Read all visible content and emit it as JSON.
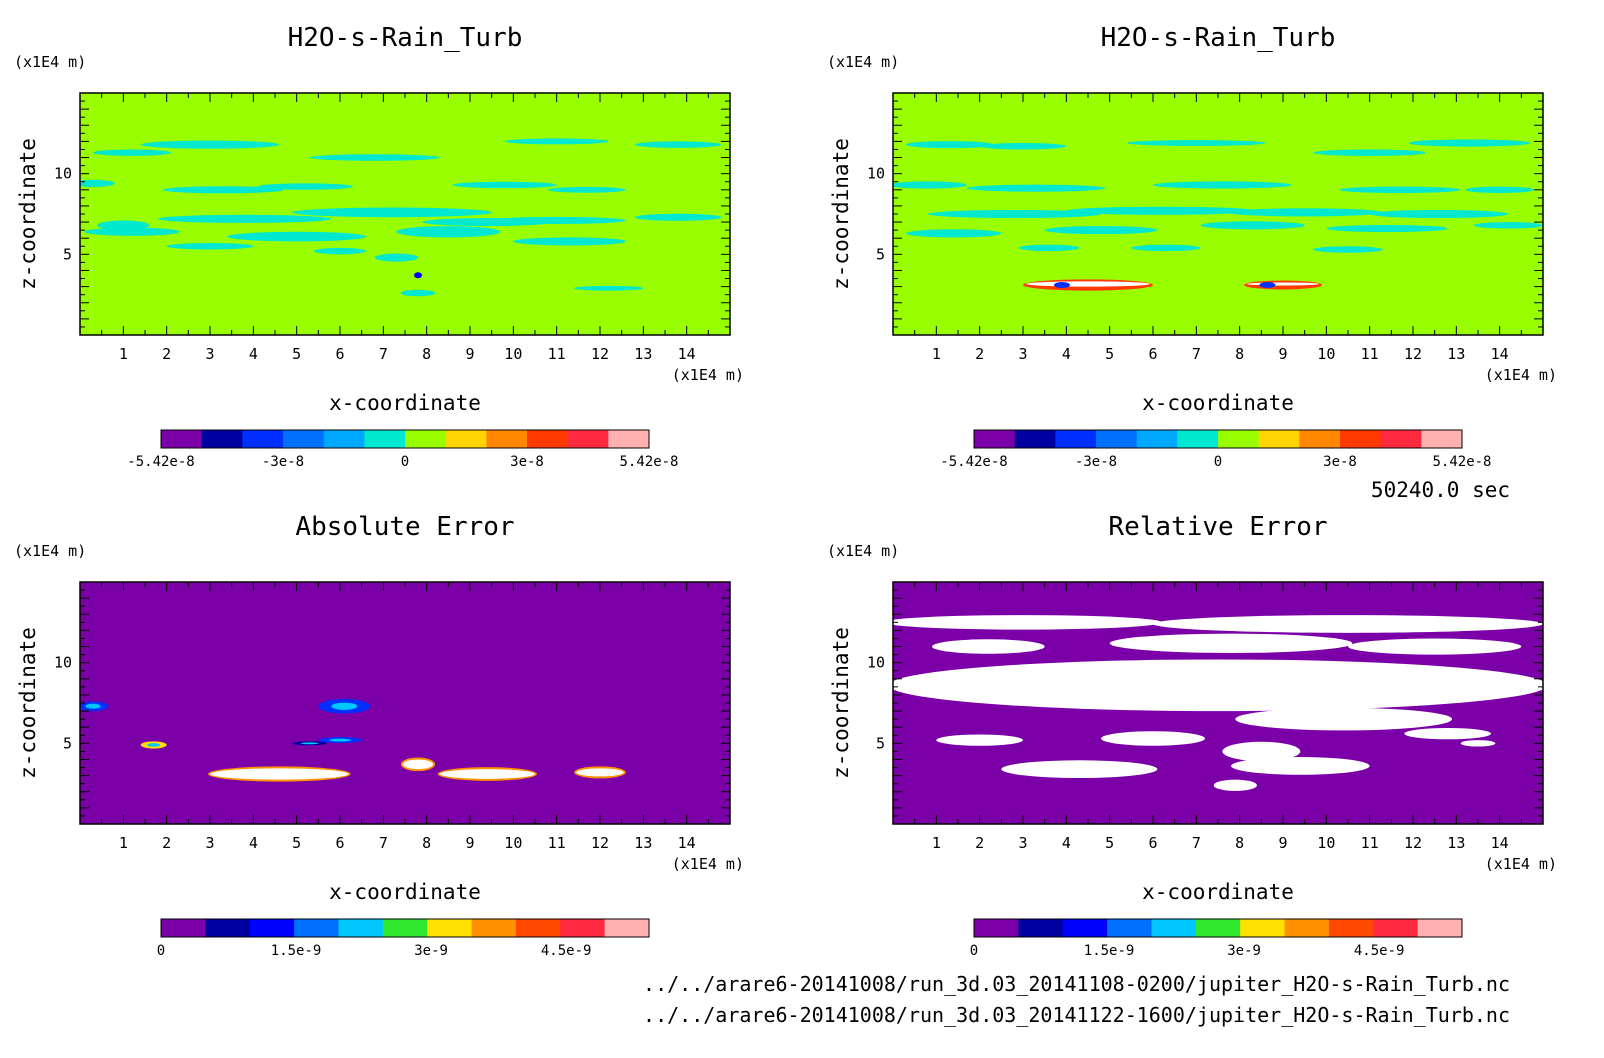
{
  "time_label": "50240.0 sec",
  "file_paths": [
    "../../arare6-20141008/run_3d.03_20141108-0200/jupiter_H2O-s-Rain_Turb.nc",
    "../../arare6-20141008/run_3d.03_20141122-1600/jupiter_H2O-s-Rain_Turb.nc"
  ],
  "colors": {
    "background_value": "#99ff00",
    "zero_fill": "#7b00a8",
    "feature_cyan": "#00e8d0",
    "white_regions": "#ffffff"
  },
  "chart_data": [
    {
      "type": "heatmap",
      "title": "H2O-s-Rain_Turb",
      "xlabel": "x-coordinate",
      "ylabel": "z-coordinate",
      "x_unit": "(x1E4 m)",
      "y_unit": "(x1E4 m)",
      "xlim": [
        0,
        15
      ],
      "ylim": [
        0,
        15
      ],
      "xticks": [
        "1",
        "2",
        "3",
        "4",
        "5",
        "6",
        "7",
        "8",
        "9",
        "10",
        "11",
        "12",
        "13",
        "14"
      ],
      "yticks": [
        "5",
        "10"
      ],
      "colorbar": {
        "colors": [
          "#7b00a8",
          "#0000a0",
          "#0030ff",
          "#0070ff",
          "#00a8ff",
          "#00e8d0",
          "#99ff00",
          "#ffd400",
          "#ff8800",
          "#ff3a00",
          "#ff2a40",
          "#ffb0b0"
        ],
        "labels": [
          "-5.42e-8",
          "-3e-8",
          "0",
          "3e-8",
          "5.42e-8"
        ]
      }
    },
    {
      "type": "heatmap",
      "title": "H2O-s-Rain_Turb",
      "xlabel": "x-coordinate",
      "ylabel": "z-coordinate",
      "x_unit": "(x1E4 m)",
      "y_unit": "(x1E4 m)",
      "xlim": [
        0,
        15
      ],
      "ylim": [
        0,
        15
      ],
      "xticks": [
        "1",
        "2",
        "3",
        "4",
        "5",
        "6",
        "7",
        "8",
        "9",
        "10",
        "11",
        "12",
        "13",
        "14"
      ],
      "yticks": [
        "5",
        "10"
      ],
      "colorbar": {
        "colors": [
          "#7b00a8",
          "#0000a0",
          "#0030ff",
          "#0070ff",
          "#00a8ff",
          "#00e8d0",
          "#99ff00",
          "#ffd400",
          "#ff8800",
          "#ff3a00",
          "#ff2a40",
          "#ffb0b0"
        ],
        "labels": [
          "-5.42e-8",
          "-3e-8",
          "0",
          "3e-8",
          "5.42e-8"
        ]
      }
    },
    {
      "type": "heatmap",
      "title": "Absolute Error",
      "xlabel": "x-coordinate",
      "ylabel": "z-coordinate",
      "x_unit": "(x1E4 m)",
      "y_unit": "(x1E4 m)",
      "xlim": [
        0,
        15
      ],
      "ylim": [
        0,
        15
      ],
      "xticks": [
        "1",
        "2",
        "3",
        "4",
        "5",
        "6",
        "7",
        "8",
        "9",
        "10",
        "11",
        "12",
        "13",
        "14"
      ],
      "yticks": [
        "5",
        "10"
      ],
      "colorbar": {
        "colors": [
          "#7b00a8",
          "#0000a0",
          "#0000ff",
          "#0070ff",
          "#00c8ff",
          "#30e830",
          "#ffe000",
          "#ff9000",
          "#ff4800",
          "#ff2a40",
          "#ffb0b0"
        ],
        "labels": [
          "0",
          "1.5e-9",
          "3e-9",
          "4.5e-9"
        ]
      }
    },
    {
      "type": "heatmap",
      "title": "Relative Error",
      "xlabel": "x-coordinate",
      "ylabel": "z-coordinate",
      "x_unit": "(x1E4 m)",
      "y_unit": "(x1E4 m)",
      "xlim": [
        0,
        15
      ],
      "ylim": [
        0,
        15
      ],
      "xticks": [
        "1",
        "2",
        "3",
        "4",
        "5",
        "6",
        "7",
        "8",
        "9",
        "10",
        "11",
        "12",
        "13",
        "14"
      ],
      "yticks": [
        "5",
        "10"
      ],
      "colorbar": {
        "colors": [
          "#7b00a8",
          "#0000a0",
          "#0000ff",
          "#0070ff",
          "#00c8ff",
          "#30e830",
          "#ffe000",
          "#ff9000",
          "#ff4800",
          "#ff2a40",
          "#ffb0b0"
        ],
        "labels": [
          "0",
          "1.5e-9",
          "3e-9",
          "4.5e-9"
        ]
      }
    }
  ]
}
